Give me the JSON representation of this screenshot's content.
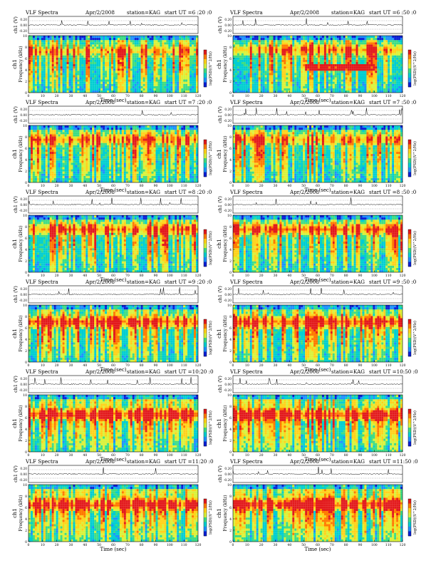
{
  "page": {
    "colors": {
      "background": "#ffffff",
      "axis": "#000000",
      "trace": "#000000"
    },
    "colorbar_stops": [
      "#ffffff",
      "#0b1fd6",
      "#1e90ff",
      "#00ced1",
      "#3ddc84",
      "#d9f23a",
      "#ffd21a",
      "#ff7a00",
      "#e31a1c"
    ]
  },
  "chart_data": [
    {
      "type": "heatmap",
      "title": "VLF Spectra",
      "date": "Apr/2/2008",
      "station": "station=KAG",
      "start": "start  UT =6 :20 :0",
      "ylabel": "Frequency  (kHz)",
      "channel_label": "ch1",
      "trace_ylabel": "ch1 (V)",
      "xlabel": "Time  (sec)",
      "colorbar_label": "log(PSD)(V^2/Hz)",
      "xlim": [
        0,
        120
      ],
      "ylim": [
        0,
        10
      ],
      "trace_ylim": [
        -0.2,
        0.2
      ],
      "x_ticks": [
        "0",
        "10",
        "20",
        "30",
        "40",
        "50",
        "60",
        "70",
        "80",
        "90",
        "100",
        "110",
        "120"
      ],
      "y_ticks": [
        "0",
        "2",
        "4",
        "6",
        "8",
        "10"
      ],
      "trace_ticks": [
        "0.20",
        "0.00",
        "-0.20"
      ],
      "band": {
        "center_khz": 7.2,
        "intensity": 0.5
      },
      "sferics_per_min": 30,
      "features": []
    },
    {
      "type": "heatmap",
      "title": "VLF Spectra",
      "date": "Apr/2/2008",
      "station": "station=KAG",
      "start": "start  UT =6 :50 :0",
      "ylabel": "Frequency  (kHz)",
      "channel_label": "ch1",
      "trace_ylabel": "ch1 (V)",
      "xlabel": "Time  (sec)",
      "colorbar_label": "log(PSD)(V^2/Hz)",
      "xlim": [
        0,
        120
      ],
      "ylim": [
        0,
        10
      ],
      "trace_ylim": [
        -0.2,
        0.2
      ],
      "x_ticks": [
        "0",
        "10",
        "20",
        "30",
        "40",
        "50",
        "60",
        "70",
        "80",
        "90",
        "100",
        "110",
        "120"
      ],
      "y_ticks": [
        "0",
        "2",
        "4",
        "6",
        "8",
        "10"
      ],
      "trace_ticks": [
        "0.20",
        "0.00",
        "-0.20"
      ],
      "band": {
        "center_khz": 7.5,
        "intensity": 0.55
      },
      "sferics_per_min": 25,
      "features": [
        {
          "t_start": 50,
          "t_end": 100,
          "freq_khz": 4.5,
          "label": ""
        }
      ]
    },
    {
      "type": "heatmap",
      "title": "VLF Spectra",
      "date": "Apr/2/2008",
      "station": "station=KAG",
      "start": "start  UT =7 :20 :0",
      "ylabel": "Frequency  (kHz)",
      "channel_label": "ch1",
      "trace_ylabel": "ch1 (V)",
      "xlabel": "Time  (sec)",
      "colorbar_label": "log(PSD)(V^2/Hz)",
      "xlim": [
        0,
        120
      ],
      "ylim": [
        0,
        10
      ],
      "trace_ylim": [
        -0.2,
        0.2
      ],
      "x_ticks": [
        "0",
        "10",
        "20",
        "30",
        "40",
        "50",
        "60",
        "70",
        "80",
        "90",
        "100",
        "110",
        "120"
      ],
      "y_ticks": [
        "0",
        "2",
        "4",
        "6",
        "8",
        "10"
      ],
      "trace_ticks": [
        "0.20",
        "0.00",
        "-0.20"
      ],
      "band": {
        "center_khz": 7.5,
        "intensity": 0.6
      },
      "sferics_per_min": 30,
      "features": []
    },
    {
      "type": "heatmap",
      "title": "VLF Spectra",
      "date": "Apr/2/2008",
      "station": "station=KAG",
      "start": "start  UT =7 :50 :0",
      "ylabel": "Frequency  (kHz)",
      "channel_label": "ch1",
      "trace_ylabel": "ch1 (V)",
      "xlabel": "Time  (sec)",
      "colorbar_label": "log(PSD)(V^2/Hz)",
      "xlim": [
        0,
        120
      ],
      "ylim": [
        0,
        10
      ],
      "trace_ylim": [
        -0.2,
        0.2
      ],
      "x_ticks": [
        "0",
        "10",
        "20",
        "30",
        "40",
        "50",
        "60",
        "70",
        "80",
        "90",
        "100",
        "110",
        "120"
      ],
      "y_ticks": [
        "0",
        "2",
        "4",
        "6",
        "8",
        "10"
      ],
      "trace_ticks": [
        "0.20",
        "0.00",
        "-0.20"
      ],
      "band": {
        "center_khz": 7.5,
        "intensity": 0.55
      },
      "sferics_per_min": 28,
      "features": []
    },
    {
      "type": "heatmap",
      "title": "VLF Spectra",
      "date": "Apr/2/2008",
      "station": "station=KAG",
      "start": "start  UT =8 :20 :0",
      "ylabel": "Frequency  (kHz)",
      "channel_label": "ch1",
      "trace_ylabel": "ch1 (V)",
      "xlabel": "Time  (sec)",
      "colorbar_label": "log(PSD)(V^2/Hz)",
      "xlim": [
        0,
        120
      ],
      "ylim": [
        0,
        10
      ],
      "trace_ylim": [
        -0.2,
        0.2
      ],
      "x_ticks": [
        "0",
        "10",
        "20",
        "30",
        "40",
        "50",
        "60",
        "70",
        "80",
        "90",
        "100",
        "110",
        "120"
      ],
      "y_ticks": [
        "0",
        "2",
        "4",
        "6",
        "8",
        "10"
      ],
      "trace_ticks": [
        "0.20",
        "0.00",
        "-0.20"
      ],
      "band": {
        "center_khz": 7.5,
        "intensity": 0.7
      },
      "sferics_per_min": 30,
      "features": []
    },
    {
      "type": "heatmap",
      "title": "VLF Spectra",
      "date": "Apr/2/2008",
      "station": "station=KAG",
      "start": "start  UT =8 :50 :0",
      "ylabel": "Frequency  (kHz)",
      "channel_label": "ch1",
      "trace_ylabel": "ch1 (V)",
      "xlabel": "Time  (sec)",
      "colorbar_label": "log(PSD)(V^2/Hz)",
      "xlim": [
        0,
        120
      ],
      "ylim": [
        0,
        10
      ],
      "trace_ylim": [
        -0.2,
        0.2
      ],
      "x_ticks": [
        "0",
        "10",
        "20",
        "30",
        "40",
        "50",
        "60",
        "70",
        "80",
        "90",
        "100",
        "110",
        "120"
      ],
      "y_ticks": [
        "0",
        "2",
        "4",
        "6",
        "8",
        "10"
      ],
      "trace_ticks": [
        "0.20",
        "0.00",
        "-0.20"
      ],
      "band": {
        "center_khz": 7.5,
        "intensity": 0.75
      },
      "sferics_per_min": 32,
      "features": []
    },
    {
      "type": "heatmap",
      "title": "VLF Spectra",
      "date": "Apr/2/2008",
      "station": "station=KAG",
      "start": "start  UT =9 :20 :0",
      "ylabel": "Frequency  (kHz)",
      "channel_label": "ch1",
      "trace_ylabel": "ch1 (V)",
      "xlabel": "Time  (sec)",
      "colorbar_label": "log(PSD)(V^2/Hz)",
      "xlim": [
        0,
        120
      ],
      "ylim": [
        0,
        10
      ],
      "trace_ylim": [
        -0.2,
        0.2
      ],
      "x_ticks": [
        "0",
        "10",
        "20",
        "30",
        "40",
        "50",
        "60",
        "70",
        "80",
        "90",
        "100",
        "110",
        "120"
      ],
      "y_ticks": [
        "0",
        "2",
        "4",
        "6",
        "8",
        "10"
      ],
      "trace_ticks": [
        "0.20",
        "0.00",
        "-0.20"
      ],
      "band": {
        "center_khz": 7.0,
        "intensity": 0.85
      },
      "sferics_per_min": 40,
      "features": []
    },
    {
      "type": "heatmap",
      "title": "VLF Spectra",
      "date": "Apr/2/2008",
      "station": "station=KAG",
      "start": "start  UT =9 :50 :0",
      "ylabel": "Frequency  (kHz)",
      "channel_label": "ch1",
      "trace_ylabel": "ch1 (V)",
      "xlabel": "Time  (sec)",
      "colorbar_label": "log(PSD)(V^2/Hz)",
      "xlim": [
        0,
        120
      ],
      "ylim": [
        0,
        10
      ],
      "trace_ylim": [
        -0.2,
        0.2
      ],
      "x_ticks": [
        "0",
        "10",
        "20",
        "30",
        "40",
        "50",
        "60",
        "70",
        "80",
        "90",
        "100",
        "110",
        "120"
      ],
      "y_ticks": [
        "0",
        "2",
        "4",
        "6",
        "8",
        "10"
      ],
      "trace_ticks": [
        "0.20",
        "0.00",
        "-0.20"
      ],
      "band": {
        "center_khz": 7.0,
        "intensity": 0.85
      },
      "sferics_per_min": 40,
      "features": []
    },
    {
      "type": "heatmap",
      "title": "VLF Spectra",
      "date": "Apr/2/2008",
      "station": "station=KAG",
      "start": "start  UT =10:20 :0",
      "ylabel": "Frequency  (kHz)",
      "channel_label": "ch1",
      "trace_ylabel": "ch1 (V)",
      "xlabel": "Time  (sec)",
      "colorbar_label": "log(PSD)(V^2/Hz)",
      "xlim": [
        0,
        120
      ],
      "ylim": [
        0,
        10
      ],
      "trace_ylim": [
        -0.2,
        0.2
      ],
      "x_ticks": [
        "0",
        "10",
        "20",
        "30",
        "40",
        "50",
        "60",
        "70",
        "80",
        "90",
        "100",
        "110",
        "120"
      ],
      "y_ticks": [
        "0",
        "2",
        "4",
        "6",
        "8",
        "10"
      ],
      "trace_ticks": [
        "0.20",
        "0.00",
        "-0.20"
      ],
      "band": {
        "center_khz": 6.5,
        "intensity": 0.9
      },
      "sferics_per_min": 50,
      "features": []
    },
    {
      "type": "heatmap",
      "title": "VLF Spectra",
      "date": "Apr/2/2008",
      "station": "station=KAG",
      "start": "start  UT =10:50 :0",
      "ylabel": "Frequency  (kHz)",
      "channel_label": "ch1",
      "trace_ylabel": "ch1 (V)",
      "xlabel": "Time  (sec)",
      "colorbar_label": "log(PSD)(V^2/Hz)",
      "xlim": [
        0,
        120
      ],
      "ylim": [
        0,
        10
      ],
      "trace_ylim": [
        -0.2,
        0.2
      ],
      "x_ticks": [
        "0",
        "10",
        "20",
        "30",
        "40",
        "50",
        "60",
        "70",
        "80",
        "90",
        "100",
        "110",
        "120"
      ],
      "y_ticks": [
        "0",
        "2",
        "4",
        "6",
        "8",
        "10"
      ],
      "trace_ticks": [
        "0.20",
        "0.00",
        "-0.20"
      ],
      "band": {
        "center_khz": 6.5,
        "intensity": 0.9
      },
      "sferics_per_min": 50,
      "features": []
    },
    {
      "type": "heatmap",
      "title": "VLF Spectra",
      "date": "Apr/2/2008",
      "station": "station=KAG",
      "start": "start  UT =11:20 :0",
      "ylabel": "Frequency  (kHz)",
      "channel_label": "ch1",
      "trace_ylabel": "ch1 (V)",
      "xlabel": "Time  (sec)",
      "colorbar_label": "log(PSD)(V^2/Hz)",
      "xlim": [
        0,
        120
      ],
      "ylim": [
        0,
        10
      ],
      "trace_ylim": [
        -0.2,
        0.2
      ],
      "x_ticks": [
        "0",
        "10",
        "20",
        "30",
        "40",
        "50",
        "60",
        "70",
        "80",
        "90",
        "100",
        "110",
        "120"
      ],
      "y_ticks": [
        "0",
        "2",
        "4",
        "6",
        "8",
        "10"
      ],
      "trace_ticks": [
        "0.20",
        "0.00",
        "-0.20"
      ],
      "band": {
        "center_khz": 6.5,
        "intensity": 0.9
      },
      "sferics_per_min": 55,
      "features": []
    },
    {
      "type": "heatmap",
      "title": "VLF Spectra",
      "date": "Apr/2/2008",
      "station": "station=KAG",
      "start": "start  UT =11:50 :0",
      "ylabel": "Frequency  (kHz)",
      "channel_label": "ch1",
      "trace_ylabel": "ch1 (V)",
      "xlabel": "Time  (sec)",
      "colorbar_label": "log(PSD)(V^2/Hz)",
      "xlim": [
        0,
        120
      ],
      "ylim": [
        0,
        10
      ],
      "trace_ylim": [
        -0.2,
        0.2
      ],
      "x_ticks": [
        "0",
        "10",
        "20",
        "30",
        "40",
        "50",
        "60",
        "70",
        "80",
        "90",
        "100",
        "110",
        "120"
      ],
      "y_ticks": [
        "0",
        "2",
        "4",
        "6",
        "8",
        "10"
      ],
      "trace_ticks": [
        "0.20",
        "0.00",
        "-0.20"
      ],
      "band": {
        "center_khz": 6.5,
        "intensity": 0.9
      },
      "sferics_per_min": 55,
      "features": []
    }
  ]
}
